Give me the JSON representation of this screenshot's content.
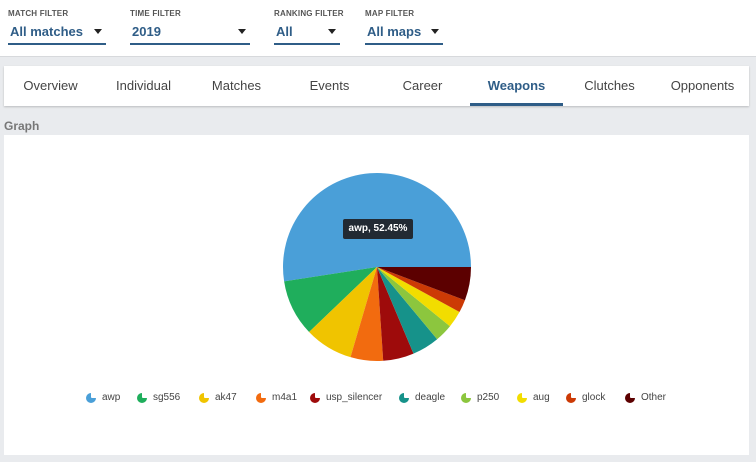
{
  "filters": [
    {
      "label": "MATCH FILTER",
      "value": "All matches"
    },
    {
      "label": "TIME FILTER",
      "value": "2019"
    },
    {
      "label": "RANKING FILTER",
      "value": "All"
    },
    {
      "label": "MAP FILTER",
      "value": "All maps"
    }
  ],
  "tabs": [
    "Overview",
    "Individual",
    "Matches",
    "Events",
    "Career",
    "Weapons",
    "Clutches",
    "Opponents"
  ],
  "active_tab": "Weapons",
  "section_title": "Graph",
  "tooltip": "awp, 52.45%",
  "colors": {
    "accent": "#2f5d87",
    "tooltip_bg": "#222a33"
  },
  "chart_data": {
    "type": "pie",
    "categories": [
      "awp",
      "sg556",
      "ak47",
      "m4a1",
      "usp_silencer",
      "deagle",
      "p250",
      "aug",
      "glock",
      "Other"
    ],
    "values": [
      52.45,
      9.7,
      8.3,
      5.6,
      5.3,
      4.7,
      3.1,
      2.9,
      2.2,
      5.75
    ],
    "colors": [
      "#4a9fd8",
      "#1fae5c",
      "#f0c400",
      "#f26b0f",
      "#9e0b0b",
      "#16928a",
      "#8cc63e",
      "#f2dd00",
      "#cc3a05",
      "#5c0000"
    ],
    "legend_position": "bottom"
  }
}
